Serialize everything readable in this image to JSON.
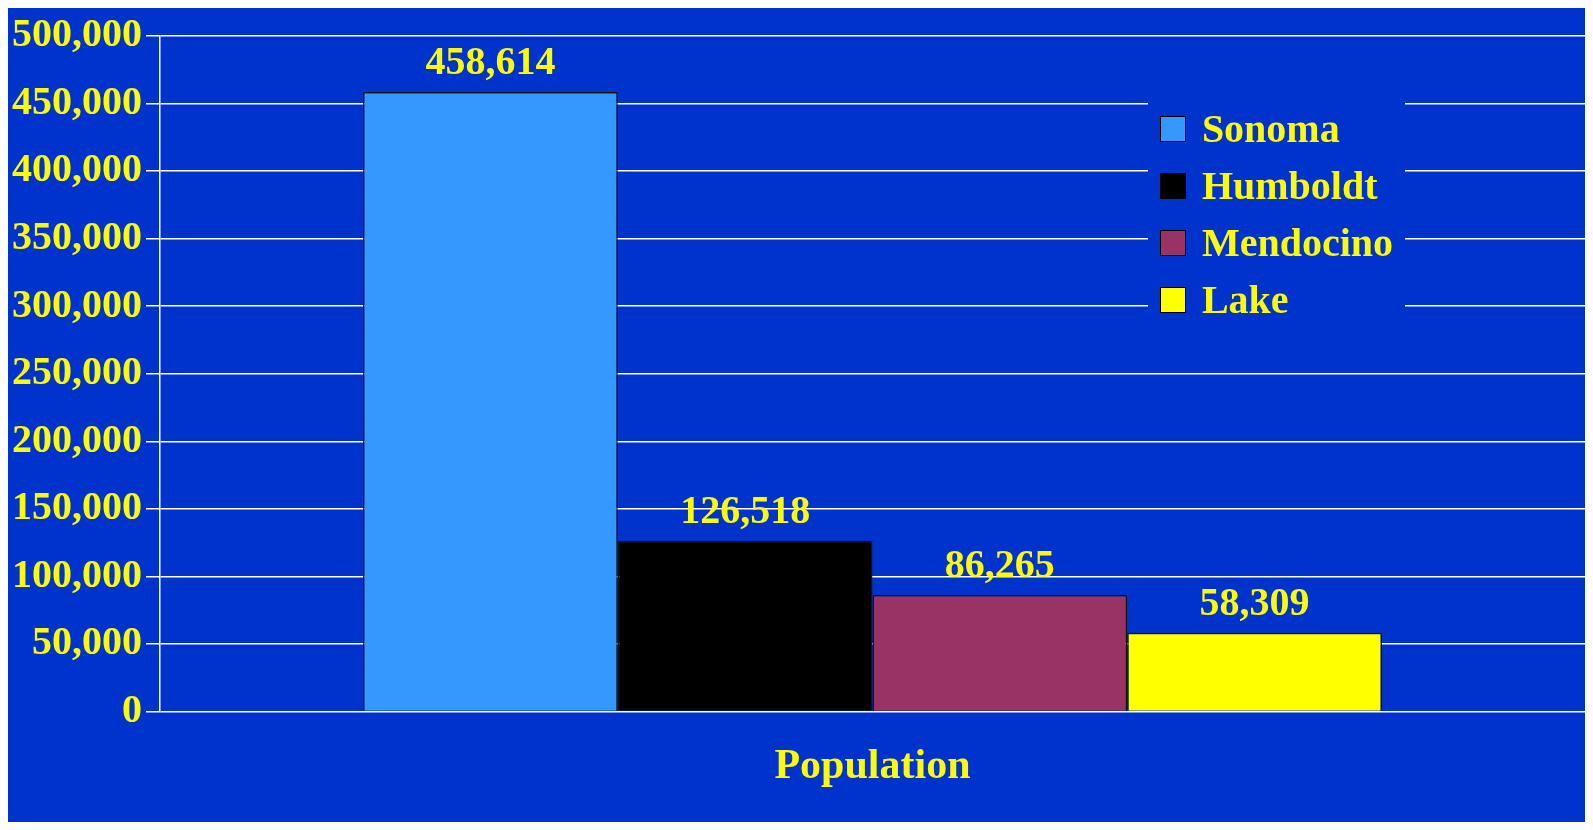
{
  "chart_data": {
    "type": "bar",
    "categories": [
      "Population"
    ],
    "series": [
      {
        "name": "Sonoma",
        "color": "#3399ff",
        "values": [
          458614
        ],
        "value_labels": [
          "458,614"
        ]
      },
      {
        "name": "Humboldt",
        "color": "#000000",
        "values": [
          126518
        ],
        "value_labels": [
          "126,518"
        ]
      },
      {
        "name": "Mendocino",
        "color": "#993366",
        "values": [
          86265
        ],
        "value_labels": [
          "86,265"
        ]
      },
      {
        "name": "Lake",
        "color": "#ffff00",
        "values": [
          58309
        ],
        "value_labels": [
          "58,309"
        ]
      }
    ],
    "ylim": [
      0,
      500000
    ],
    "yticks": [
      0,
      {
        "value": 50000,
        "label": "50,000"
      },
      {
        "value": 100000,
        "label": "100,000"
      },
      {
        "value": 150000,
        "label": "150,000"
      },
      {
        "value": 200000,
        "label": "200,000"
      },
      {
        "value": 250000,
        "label": "250,000"
      },
      {
        "value": 300000,
        "label": "300,000"
      },
      {
        "value": 350000,
        "label": "350,000"
      },
      {
        "value": 400000,
        "label": "400,000"
      },
      {
        "value": 450000,
        "label": "450,000"
      },
      {
        "value": 500000,
        "label": "500,000"
      }
    ],
    "grid": "y",
    "legend": "top right"
  }
}
